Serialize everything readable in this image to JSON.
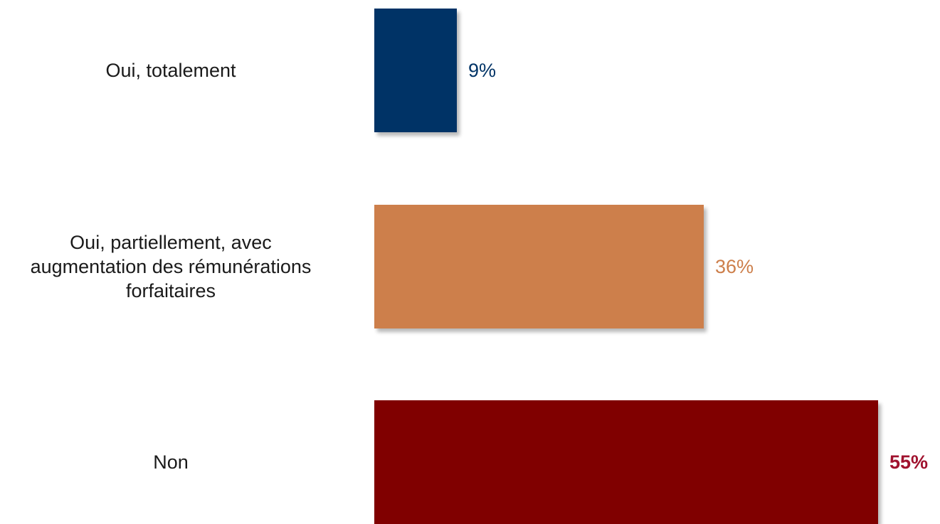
{
  "chart_data": {
    "type": "bar",
    "orientation": "horizontal",
    "categories": [
      "Oui, totalement",
      "Oui, partiellement, avec augmentation des rémunérations forfaitaires",
      "Non"
    ],
    "category_lines": [
      [
        "Oui, totalement"
      ],
      [
        "Oui, partiellement, avec",
        "augmentation des rémunérations",
        "forfaitaires"
      ],
      [
        "Non"
      ]
    ],
    "values": [
      9,
      36,
      55
    ],
    "value_labels": [
      "9%",
      "36%",
      "55%"
    ],
    "bar_colors": [
      "#003366",
      "#CD7F4B",
      "#800000"
    ],
    "label_colors": [
      "#003366",
      "#CD7F4B",
      "#A0122E"
    ],
    "label_bold": [
      false,
      false,
      true
    ],
    "xlim": [
      0,
      55
    ],
    "grid": false,
    "legend": "none",
    "title": "",
    "xlabel": "",
    "ylabel": ""
  }
}
